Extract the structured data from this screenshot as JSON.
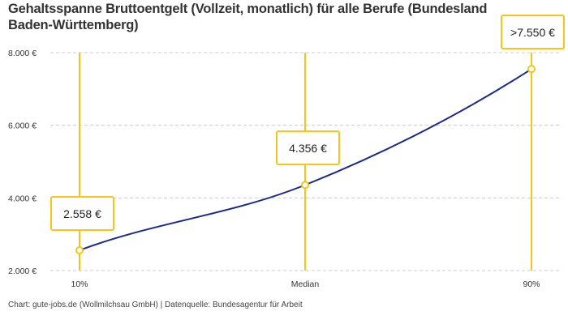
{
  "chart_data": {
    "type": "line",
    "title": "Gehaltsspanne Bruttoentgelt (Vollzeit, monatlich) für alle Berufe (Bundesland Baden-Württemberg)",
    "categories": [
      "10%",
      "Median",
      "90%"
    ],
    "values": [
      2558,
      4356,
      7550
    ],
    "data_labels": [
      "2.558 €",
      "4.356 €",
      ">7.550 €"
    ],
    "ylim": [
      2000,
      8000
    ],
    "yticks": [
      2000,
      4000,
      6000,
      8000
    ],
    "ytick_labels": [
      "2.000 €",
      "4.000 €",
      "6.000 €",
      "8.000 €"
    ],
    "grid": "horizontal dashed",
    "xlabel": "",
    "ylabel": "",
    "colors": {
      "line": "#1a2a8c",
      "marker": "#f5c518",
      "grid": "#cccccc"
    }
  },
  "footer": "Chart: gute-jobs.de (Wollmilchsau GmbH) | Datenquelle: Bundesagentur für Arbeit"
}
